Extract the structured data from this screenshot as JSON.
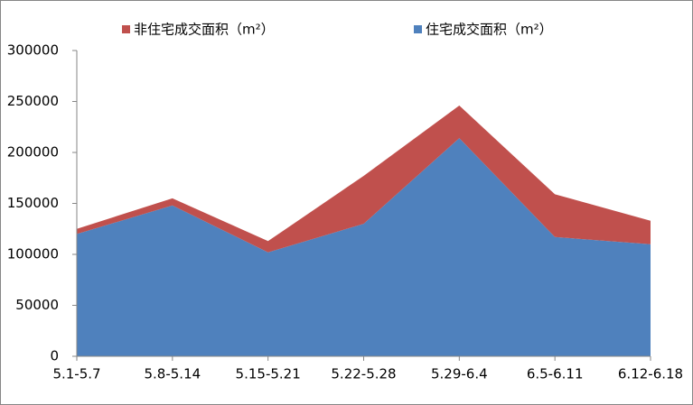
{
  "chart_data": {
    "type": "stacked-area",
    "categories": [
      "5.1-5.7",
      "5.8-5.14",
      "5.15-5.21",
      "5.22-5.28",
      "5.29-6.4",
      "6.5-6.11",
      "6.12-6.18"
    ],
    "series": [
      {
        "name": "住宅成交面积（m²）",
        "color": "#4f81bd",
        "values": [
          120000,
          148000,
          102000,
          130000,
          214000,
          117000,
          110000
        ]
      },
      {
        "name": "非住宅成交面积（m²）",
        "color": "#c0504d",
        "values": [
          5000,
          7000,
          11000,
          47000,
          32000,
          42000,
          23000
        ]
      }
    ],
    "ylim": [
      0,
      300000
    ],
    "yticks": [
      0,
      50000,
      100000,
      150000,
      200000,
      250000,
      300000
    ],
    "grid": false,
    "legend": "top"
  }
}
